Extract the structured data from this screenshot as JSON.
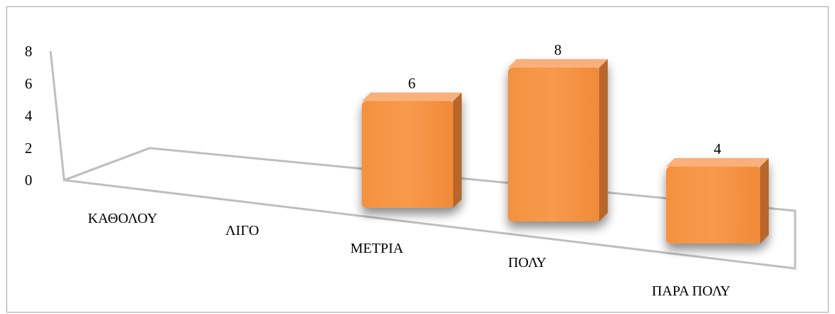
{
  "chart_data": {
    "type": "bar",
    "title": "",
    "xlabel": "",
    "ylabel": "",
    "categories": [
      "ΚΑΘΟΛΟΥ",
      "ΛΙΓΟ",
      "ΜΕΤΡΙΑ",
      "ΠΟΛΥ",
      "ΠΑΡΑ ΠΟΛΥ"
    ],
    "values": [
      0,
      0,
      6,
      8,
      4
    ],
    "data_labels": [
      null,
      null,
      "6",
      "8",
      "4"
    ],
    "y_ticks": [
      "0",
      "2",
      "4",
      "6",
      "8"
    ],
    "ylim": [
      0,
      8
    ],
    "grid": false,
    "legend": "none",
    "style": "3d-perspective",
    "colors": {
      "bar_front": "#F79646",
      "bar_side": "#B9662A",
      "bar_top": "#FAB07A",
      "axis": "#BFBFBF"
    }
  }
}
